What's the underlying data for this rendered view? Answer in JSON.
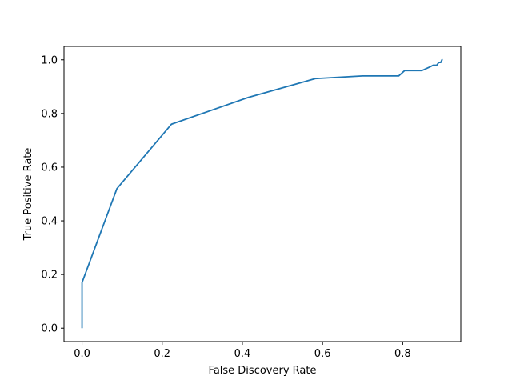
{
  "chart_data": {
    "type": "line",
    "title": "",
    "xlabel": "False Discovery Rate",
    "ylabel": "True Positive Rate",
    "xlim": [
      -0.045,
      0.945
    ],
    "ylim": [
      -0.05,
      1.05
    ],
    "xticks": [
      0.0,
      0.2,
      0.4,
      0.6,
      0.8
    ],
    "yticks": [
      0.0,
      0.2,
      0.4,
      0.6,
      0.8,
      1.0
    ],
    "xtick_labels": [
      "0.0",
      "0.2",
      "0.4",
      "0.6",
      "0.8"
    ],
    "ytick_labels": [
      "0.0",
      "0.2",
      "0.4",
      "0.6",
      "0.8",
      "1.0"
    ],
    "grid": false,
    "series": [
      {
        "color": "#1f77b4",
        "x": [
          0.0,
          0.0,
          0.087,
          0.223,
          0.415,
          0.582,
          0.7,
          0.79,
          0.805,
          0.848,
          0.87,
          0.876,
          0.88,
          0.885,
          0.89,
          0.895,
          0.898,
          0.9
        ],
        "y": [
          0.0,
          0.17,
          0.52,
          0.76,
          0.86,
          0.93,
          0.94,
          0.94,
          0.96,
          0.96,
          0.975,
          0.98,
          0.98,
          0.98,
          0.99,
          0.99,
          1.0,
          1.0
        ]
      }
    ]
  }
}
